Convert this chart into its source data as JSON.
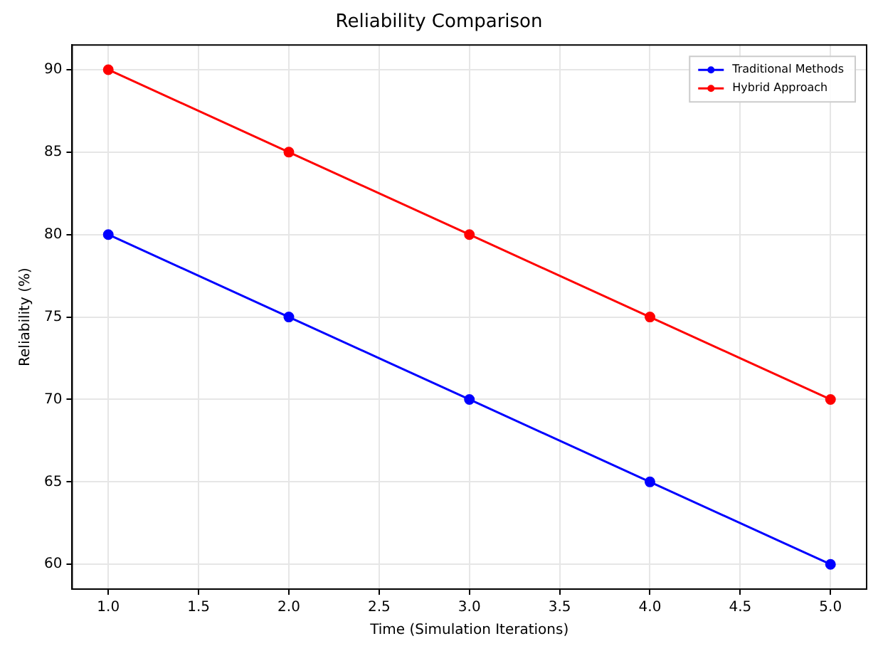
{
  "chart_data": {
    "type": "line",
    "title": "Reliability Comparison",
    "xlabel": "Time (Simulation Iterations)",
    "ylabel": "Reliability (%)",
    "x": [
      1,
      2,
      3,
      4,
      5
    ],
    "series": [
      {
        "name": "Traditional Methods",
        "color": "#0000ff",
        "values": [
          80,
          75,
          70,
          65,
          60
        ]
      },
      {
        "name": "Hybrid Approach",
        "color": "#ff0000",
        "values": [
          90,
          85,
          80,
          75,
          70
        ]
      }
    ],
    "xlim": [
      0.8,
      5.2
    ],
    "xticks": [
      {
        "value": 1,
        "label": "1.0"
      },
      {
        "value": 1.5,
        "label": "1.5"
      },
      {
        "value": 2,
        "label": "2.0"
      },
      {
        "value": 2.5,
        "label": "2.5"
      },
      {
        "value": 3,
        "label": "3.0"
      },
      {
        "value": 3.5,
        "label": "3.5"
      },
      {
        "value": 4,
        "label": "4.0"
      },
      {
        "value": 4.5,
        "label": "4.5"
      },
      {
        "value": 5,
        "label": "5.0"
      }
    ],
    "ylim": [
      58.5,
      91.5
    ],
    "yticks": [
      60,
      65,
      70,
      75,
      80,
      85,
      90
    ],
    "grid": true,
    "legend": "top right",
    "marker": "circle",
    "line_style": "solid"
  }
}
